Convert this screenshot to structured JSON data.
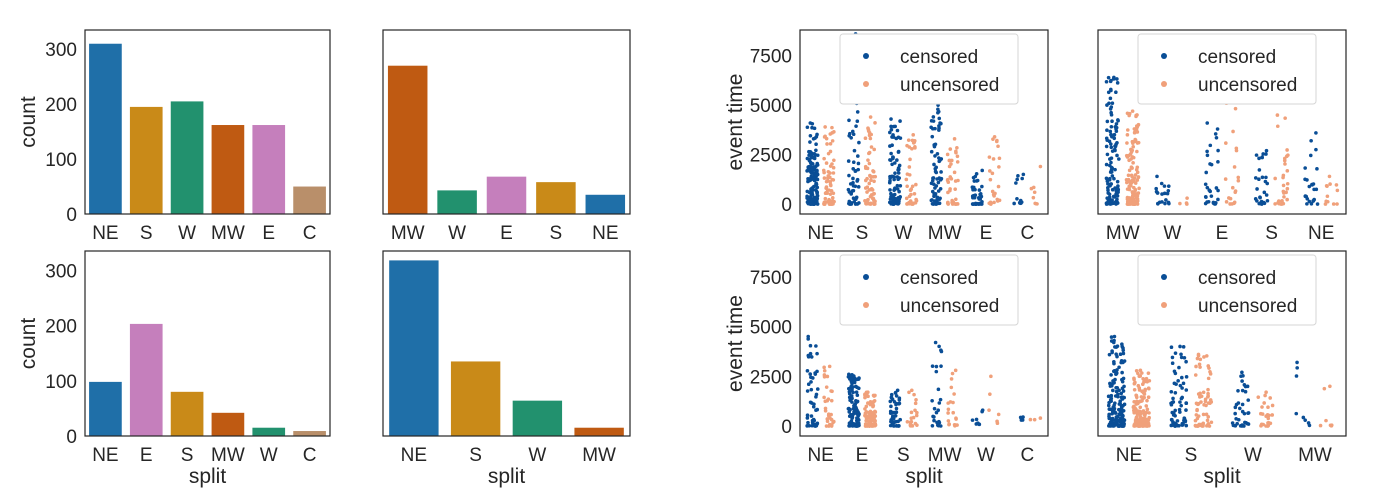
{
  "colors": {
    "NE": "#1f6fa8",
    "S": "#c98a18",
    "W": "#22916e",
    "MW": "#bf5a12",
    "E": "#c57fbc",
    "C": "#b98f6a",
    "censored": "#0a4e96",
    "uncensored": "#f0a07a"
  },
  "chart_data": [
    {
      "type": "bar",
      "panel": "top-left",
      "categories": [
        "NE",
        "S",
        "W",
        "MW",
        "E",
        "C"
      ],
      "values": [
        310,
        195,
        205,
        162,
        162,
        50
      ],
      "title": "",
      "xlabel": "",
      "ylabel": "count",
      "ylim": [
        0,
        335
      ],
      "yticks": [
        0,
        100,
        200,
        300
      ],
      "grid": false
    },
    {
      "type": "bar",
      "panel": "top-middle",
      "categories": [
        "MW",
        "W",
        "E",
        "S",
        "NE"
      ],
      "values": [
        270,
        43,
        68,
        58,
        35
      ],
      "title": "",
      "xlabel": "",
      "ylabel": "",
      "ylim": [
        0,
        335
      ],
      "yticks": [],
      "grid": false
    },
    {
      "type": "bar",
      "panel": "bottom-left",
      "categories": [
        "NE",
        "E",
        "S",
        "MW",
        "W",
        "C"
      ],
      "values": [
        98,
        203,
        80,
        42,
        15,
        9
      ],
      "title": "",
      "xlabel": "split",
      "ylabel": "count",
      "ylim": [
        0,
        335
      ],
      "yticks": [
        0,
        100,
        200,
        300
      ],
      "grid": false
    },
    {
      "type": "bar",
      "panel": "bottom-middle",
      "categories": [
        "NE",
        "S",
        "W",
        "MW"
      ],
      "values": [
        318,
        135,
        64,
        15
      ],
      "title": "",
      "xlabel": "split",
      "ylabel": "",
      "ylim": [
        0,
        335
      ],
      "yticks": [],
      "grid": false
    },
    {
      "type": "scatter",
      "panel": "top-right-1",
      "categories": [
        "NE",
        "S",
        "W",
        "MW",
        "E",
        "C"
      ],
      "series": [
        {
          "name": "censored",
          "ranges": [
            [
              0,
              4100
            ],
            [
              0,
              8600
            ],
            [
              0,
              4300
            ],
            [
              0,
              5000
            ],
            [
              0,
              1700
            ],
            [
              0,
              1500
            ]
          ],
          "counts": [
            150,
            70,
            80,
            70,
            40,
            12
          ]
        },
        {
          "name": "uncensored",
          "ranges": [
            [
              0,
              3900
            ],
            [
              0,
              4400
            ],
            [
              0,
              3500
            ],
            [
              0,
              3300
            ],
            [
              0,
              3400
            ],
            [
              0,
              1900
            ]
          ],
          "counts": [
            70,
            60,
            40,
            40,
            25,
            8
          ]
        }
      ],
      "title": "",
      "xlabel": "",
      "ylabel": "event time",
      "ylim": [
        -500,
        8800
      ],
      "yticks": [
        0,
        2500,
        5000,
        7500
      ],
      "legend": {
        "position": "top-center",
        "entries": [
          "censored",
          "uncensored"
        ]
      },
      "grid": false
    },
    {
      "type": "scatter",
      "panel": "top-right-2",
      "categories": [
        "MW",
        "W",
        "E",
        "S",
        "NE"
      ],
      "series": [
        {
          "name": "censored",
          "ranges": [
            [
              0,
              6400
            ],
            [
              0,
              1400
            ],
            [
              0,
              4100
            ],
            [
              0,
              2700
            ],
            [
              0,
              3600
            ]
          ],
          "counts": [
            120,
            20,
            30,
            28,
            25
          ]
        },
        {
          "name": "uncensored",
          "ranges": [
            [
              0,
              4700
            ],
            [
              0,
              300
            ],
            [
              0,
              5100
            ],
            [
              0,
              4500
            ],
            [
              0,
              1400
            ]
          ],
          "counts": [
            130,
            4,
            20,
            30,
            12
          ]
        }
      ],
      "title": "",
      "xlabel": "",
      "ylabel": "",
      "ylim": [
        -500,
        8800
      ],
      "yticks": [],
      "legend": {
        "position": "top-center",
        "entries": [
          "censored",
          "uncensored"
        ]
      },
      "grid": false
    },
    {
      "type": "scatter",
      "panel": "bottom-right-1",
      "categories": [
        "NE",
        "E",
        "S",
        "MW",
        "W",
        "C"
      ],
      "series": [
        {
          "name": "censored",
          "ranges": [
            [
              0,
              4500
            ],
            [
              0,
              2600
            ],
            [
              0,
              1800
            ],
            [
              0,
              4200
            ],
            [
              0,
              800
            ],
            [
              300,
              450
            ]
          ],
          "counts": [
            50,
            100,
            45,
            25,
            8,
            4
          ]
        },
        {
          "name": "uncensored",
          "ranges": [
            [
              0,
              3000
            ],
            [
              0,
              1700
            ],
            [
              0,
              1800
            ],
            [
              0,
              2800
            ],
            [
              0,
              2500
            ],
            [
              300,
              400
            ]
          ],
          "counts": [
            30,
            90,
            20,
            20,
            6,
            3
          ]
        }
      ],
      "title": "",
      "xlabel": "split",
      "ylabel": "event time",
      "ylim": [
        -500,
        8800
      ],
      "yticks": [
        0,
        2500,
        5000,
        7500
      ],
      "legend": {
        "position": "top-center",
        "entries": [
          "censored",
          "uncensored"
        ]
      },
      "grid": false
    },
    {
      "type": "scatter",
      "panel": "bottom-right-2",
      "categories": [
        "NE",
        "S",
        "W",
        "MW"
      ],
      "series": [
        {
          "name": "censored",
          "ranges": [
            [
              0,
              4500
            ],
            [
              0,
              4000
            ],
            [
              0,
              2700
            ],
            [
              0,
              3200
            ]
          ],
          "counts": [
            170,
            70,
            35,
            8
          ]
        },
        {
          "name": "uncensored",
          "ranges": [
            [
              0,
              2800
            ],
            [
              0,
              3600
            ],
            [
              0,
              1700
            ],
            [
              0,
              2000
            ]
          ],
          "counts": [
            150,
            65,
            25,
            7
          ]
        }
      ],
      "title": "",
      "xlabel": "split",
      "ylabel": "",
      "ylim": [
        -500,
        8800
      ],
      "yticks": [],
      "legend": {
        "position": "top-center",
        "entries": [
          "censored",
          "uncensored"
        ]
      },
      "grid": false
    }
  ]
}
